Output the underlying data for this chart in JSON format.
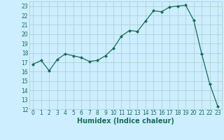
{
  "x": [
    0,
    1,
    2,
    3,
    4,
    5,
    6,
    7,
    8,
    9,
    10,
    11,
    12,
    13,
    14,
    15,
    16,
    17,
    18,
    19,
    20,
    21,
    22,
    23
  ],
  "y": [
    16.8,
    17.2,
    16.1,
    17.3,
    17.9,
    17.7,
    17.5,
    17.1,
    17.2,
    17.7,
    18.5,
    19.8,
    20.4,
    20.3,
    21.4,
    22.5,
    22.4,
    22.9,
    23.0,
    23.1,
    21.5,
    17.9,
    14.7,
    12.3
  ],
  "xlabel": "Humidex (Indice chaleur)",
  "xlim": [
    -0.5,
    23.5
  ],
  "ylim": [
    12,
    23.5
  ],
  "yticks": [
    12,
    13,
    14,
    15,
    16,
    17,
    18,
    19,
    20,
    21,
    22,
    23
  ],
  "xticks": [
    0,
    1,
    2,
    3,
    4,
    5,
    6,
    7,
    8,
    9,
    10,
    11,
    12,
    13,
    14,
    15,
    16,
    17,
    18,
    19,
    20,
    21,
    22,
    23
  ],
  "line_color": "#1a6b5a",
  "marker_color": "#1a6b5a",
  "bg_color": "#cceeff",
  "grid_color": "#aacccc",
  "tick_fontsize": 5.5,
  "xlabel_fontsize": 7.0
}
